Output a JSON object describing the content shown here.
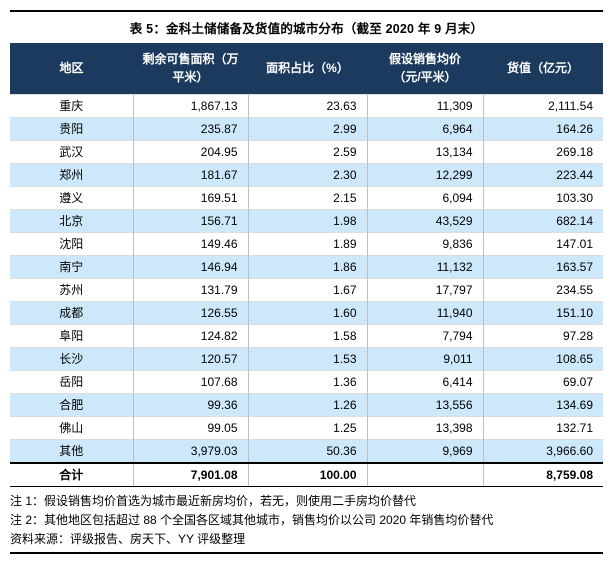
{
  "title": "表 5：金科土储储备及货值的城市分布（截至 2020 年 9 月末）",
  "table": {
    "headers": [
      "地区",
      "剩余可售面积（万\n平米）",
      "面积占比（%）",
      "假设销售均价\n（元/平米）",
      "货值（亿元）"
    ],
    "rows": [
      [
        "重庆",
        "1,867.13",
        "23.63",
        "11,309",
        "2,111.54"
      ],
      [
        "贵阳",
        "235.87",
        "2.99",
        "6,964",
        "164.26"
      ],
      [
        "武汉",
        "204.95",
        "2.59",
        "13,134",
        "269.18"
      ],
      [
        "郑州",
        "181.67",
        "2.30",
        "12,299",
        "223.44"
      ],
      [
        "遵义",
        "169.51",
        "2.15",
        "6,094",
        "103.30"
      ],
      [
        "北京",
        "156.71",
        "1.98",
        "43,529",
        "682.14"
      ],
      [
        "沈阳",
        "149.46",
        "1.89",
        "9,836",
        "147.01"
      ],
      [
        "南宁",
        "146.94",
        "1.86",
        "11,132",
        "163.57"
      ],
      [
        "苏州",
        "131.79",
        "1.67",
        "17,797",
        "234.55"
      ],
      [
        "成都",
        "126.55",
        "1.60",
        "11,940",
        "151.10"
      ],
      [
        "阜阳",
        "124.82",
        "1.58",
        "7,794",
        "97.28"
      ],
      [
        "长沙",
        "120.57",
        "1.53",
        "9,011",
        "108.65"
      ],
      [
        "岳阳",
        "107.68",
        "1.36",
        "6,414",
        "69.07"
      ],
      [
        "合肥",
        "99.36",
        "1.26",
        "13,556",
        "134.69"
      ],
      [
        "佛山",
        "99.05",
        "1.25",
        "13,398",
        "132.71"
      ],
      [
        "其他",
        "3,979.03",
        "50.36",
        "9,969",
        "3,966.60"
      ]
    ],
    "total": [
      "合计",
      "7,901.08",
      "100.00",
      "",
      "8,759.08"
    ]
  },
  "notes": [
    "注 1：假设销售均价首选为城市最近新房均价，若无，则使用二手房均价替代",
    "注 2：其他地区包括超过 88 个全国各区域其他城市，销售均价以公司 2020 年销售均价替代"
  ],
  "source": "资料来源：评级报告、房天下、YY 评级整理",
  "colors": {
    "header_bg": "#1C3A5E",
    "stripe": "#CDE8FA",
    "rule": "#000000"
  }
}
